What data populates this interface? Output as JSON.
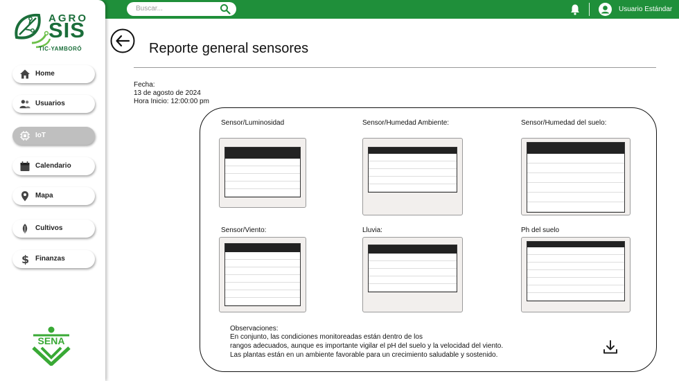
{
  "topbar": {
    "search_placeholder": "Buscar...",
    "username": "Usuario Estándar"
  },
  "logo": {
    "agro": "AGRO",
    "sis": "SIS",
    "sub": "TIC-YAMBORÓ"
  },
  "sidebar": {
    "items": [
      {
        "label": "Home",
        "icon": "home-icon"
      },
      {
        "label": "Usuarios",
        "icon": "users-icon"
      },
      {
        "label": "IoT",
        "icon": "chip-icon"
      },
      {
        "label": "Calendario",
        "icon": "calendar-icon"
      },
      {
        "label": "Mapa",
        "icon": "map-pin-icon"
      },
      {
        "label": "Cultivos",
        "icon": "leaf-icon"
      },
      {
        "label": "Finanzas",
        "icon": "dollar-icon"
      }
    ],
    "active": "IoT",
    "footer_logo": "SENA"
  },
  "page": {
    "title": "Reporte general sensores",
    "fecha_label": "Fecha:",
    "fecha_value": "13 de agosto de 2024",
    "hora": "Hora Inicio: 12:00:00 pm"
  },
  "sensors": [
    {
      "title": "Sensor/Luminosidad"
    },
    {
      "title": "Sensor/Humedad Ambiente:"
    },
    {
      "title": "Sensor/Humedad del suelo:"
    },
    {
      "title": "Sensor/Viento:"
    },
    {
      "title": "Lluvia:"
    },
    {
      "title": "Ph del suelo"
    }
  ],
  "observations": {
    "label": "Observaciones:",
    "line1": "En conjunto, las condiciones monitoreadas están dentro de los",
    "line2": "rangos adecuados, aunque es importante vigilar el pH del suelo y la velocidad del viento.",
    "line3": "Las plantas están en un ambiente favorable para un crecimiento saludable y sostenido."
  },
  "colors": {
    "brand_green": "#1f8f3a",
    "logo_green": "#1b6e3a",
    "active_nav": "#bfbfbf"
  }
}
